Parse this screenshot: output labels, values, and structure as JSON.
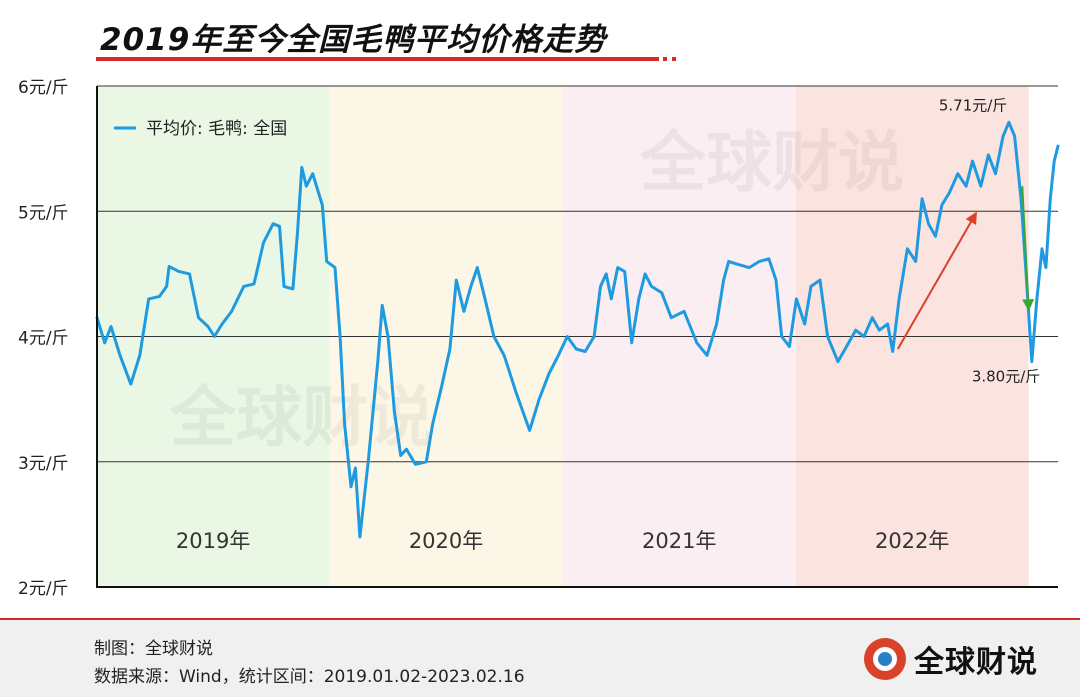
{
  "header": {
    "title": "2019年至今全国毛鸭平均价格走势"
  },
  "chart_data": {
    "type": "line",
    "title": "2019年至今全国毛鸭平均价格走势",
    "xlabel": "",
    "ylabel": "",
    "ylim": [
      2,
      6
    ],
    "y_ticks": [
      "2元/斤",
      "3元/斤",
      "4元/斤",
      "5元/斤",
      "6元/斤"
    ],
    "y_tick_values": [
      2,
      3,
      4,
      5,
      6
    ],
    "x_range": [
      "2019-01-02",
      "2023-02-16"
    ],
    "grid": "horizontal",
    "legend_position": "top-left",
    "legend": [
      "平均价: 毛鸭: 全国"
    ],
    "series": [
      {
        "name": "平均价: 毛鸭: 全国",
        "color": "#1e9be0",
        "points": [
          [
            "2019-01-02",
            4.15
          ],
          [
            "2019-01-14",
            3.95
          ],
          [
            "2019-01-24",
            4.08
          ],
          [
            "2019-02-07",
            3.85
          ],
          [
            "2019-02-24",
            3.62
          ],
          [
            "2019-03-10",
            3.85
          ],
          [
            "2019-03-24",
            4.3
          ],
          [
            "2019-04-10",
            4.32
          ],
          [
            "2019-04-21",
            4.4
          ],
          [
            "2019-04-25",
            4.56
          ],
          [
            "2019-05-10",
            4.52
          ],
          [
            "2019-05-27",
            4.5
          ],
          [
            "2019-06-10",
            4.15
          ],
          [
            "2019-06-25",
            4.08
          ],
          [
            "2019-07-05",
            4.0
          ],
          [
            "2019-07-17",
            4.1
          ],
          [
            "2019-08-01",
            4.2
          ],
          [
            "2019-08-20",
            4.4
          ],
          [
            "2019-09-05",
            4.42
          ],
          [
            "2019-09-20",
            4.75
          ],
          [
            "2019-10-05",
            4.9
          ],
          [
            "2019-10-15",
            4.88
          ],
          [
            "2019-10-22",
            4.4
          ],
          [
            "2019-11-05",
            4.38
          ],
          [
            "2019-11-12",
            4.82
          ],
          [
            "2019-11-19",
            5.35
          ],
          [
            "2019-11-26",
            5.2
          ],
          [
            "2019-12-06",
            5.3
          ],
          [
            "2019-12-21",
            5.05
          ],
          [
            "2019-12-28",
            4.6
          ],
          [
            "2020-01-10",
            4.55
          ],
          [
            "2020-01-18",
            4.0
          ],
          [
            "2020-01-25",
            3.3
          ],
          [
            "2020-02-04",
            2.8
          ],
          [
            "2020-02-11",
            2.95
          ],
          [
            "2020-02-18",
            2.4
          ],
          [
            "2020-03-02",
            3.0
          ],
          [
            "2020-03-17",
            3.8
          ],
          [
            "2020-03-24",
            4.25
          ],
          [
            "2020-04-02",
            4.0
          ],
          [
            "2020-04-12",
            3.4
          ],
          [
            "2020-04-22",
            3.05
          ],
          [
            "2020-05-01",
            3.1
          ],
          [
            "2020-05-15",
            2.98
          ],
          [
            "2020-06-01",
            3.0
          ],
          [
            "2020-06-11",
            3.3
          ],
          [
            "2020-06-25",
            3.6
          ],
          [
            "2020-07-08",
            3.9
          ],
          [
            "2020-07-18",
            4.45
          ],
          [
            "2020-07-30",
            4.2
          ],
          [
            "2020-08-10",
            4.4
          ],
          [
            "2020-08-20",
            4.55
          ],
          [
            "2020-09-01",
            4.3
          ],
          [
            "2020-09-15",
            4.0
          ],
          [
            "2020-10-01",
            3.85
          ],
          [
            "2020-10-20",
            3.55
          ],
          [
            "2020-11-10",
            3.25
          ],
          [
            "2020-11-25",
            3.5
          ],
          [
            "2020-12-10",
            3.7
          ],
          [
            "2020-12-25",
            3.85
          ],
          [
            "2021-01-08",
            4.0
          ],
          [
            "2021-01-22",
            3.9
          ],
          [
            "2021-02-05",
            3.88
          ],
          [
            "2021-02-19",
            4.0
          ],
          [
            "2021-03-01",
            4.4
          ],
          [
            "2021-03-10",
            4.5
          ],
          [
            "2021-03-18",
            4.3
          ],
          [
            "2021-03-28",
            4.55
          ],
          [
            "2021-04-08",
            4.52
          ],
          [
            "2021-04-19",
            3.95
          ],
          [
            "2021-04-30",
            4.3
          ],
          [
            "2021-05-10",
            4.5
          ],
          [
            "2021-05-20",
            4.4
          ],
          [
            "2021-06-05",
            4.35
          ],
          [
            "2021-06-20",
            4.15
          ],
          [
            "2021-07-10",
            4.2
          ],
          [
            "2021-07-30",
            3.95
          ],
          [
            "2021-08-15",
            3.85
          ],
          [
            "2021-08-30",
            4.1
          ],
          [
            "2021-09-10",
            4.45
          ],
          [
            "2021-09-18",
            4.6
          ],
          [
            "2021-09-30",
            4.58
          ],
          [
            "2021-10-20",
            4.55
          ],
          [
            "2021-11-05",
            4.6
          ],
          [
            "2021-11-20",
            4.62
          ],
          [
            "2021-12-01",
            4.45
          ],
          [
            "2021-12-10",
            4.0
          ],
          [
            "2021-12-22",
            3.92
          ],
          [
            "2022-01-02",
            4.3
          ],
          [
            "2022-01-15",
            4.1
          ],
          [
            "2022-01-25",
            4.4
          ],
          [
            "2022-02-08",
            4.45
          ],
          [
            "2022-02-20",
            4.0
          ],
          [
            "2022-03-08",
            3.8
          ],
          [
            "2022-03-25",
            3.95
          ],
          [
            "2022-04-05",
            4.05
          ],
          [
            "2022-04-18",
            4.0
          ],
          [
            "2022-05-01",
            4.15
          ],
          [
            "2022-05-12",
            4.05
          ],
          [
            "2022-05-25",
            4.1
          ],
          [
            "2022-06-02",
            3.88
          ],
          [
            "2022-06-12",
            4.3
          ],
          [
            "2022-06-25",
            4.7
          ],
          [
            "2022-07-08",
            4.6
          ],
          [
            "2022-07-18",
            5.1
          ],
          [
            "2022-07-28",
            4.9
          ],
          [
            "2022-08-08",
            4.8
          ],
          [
            "2022-08-18",
            5.05
          ],
          [
            "2022-08-30",
            5.15
          ],
          [
            "2022-09-12",
            5.3
          ],
          [
            "2022-09-25",
            5.2
          ],
          [
            "2022-10-05",
            5.4
          ],
          [
            "2022-10-18",
            5.2
          ],
          [
            "2022-10-30",
            5.45
          ],
          [
            "2022-11-10",
            5.3
          ],
          [
            "2022-11-22",
            5.6
          ],
          [
            "2022-12-01",
            5.71
          ],
          [
            "2022-12-10",
            5.6
          ],
          [
            "2022-12-20",
            5.1
          ],
          [
            "2022-12-28",
            4.5
          ],
          [
            "2023-01-06",
            3.8
          ],
          [
            "2023-01-14",
            4.3
          ],
          [
            "2023-01-22",
            4.7
          ],
          [
            "2023-01-28",
            4.55
          ],
          [
            "2023-02-04",
            5.1
          ],
          [
            "2023-02-10",
            5.4
          ],
          [
            "2023-02-16",
            5.52
          ]
        ]
      }
    ],
    "year_bands": [
      {
        "label": "2019年",
        "start": "2019-01-02",
        "end": "2020-01-01",
        "color": "#eaf7e5"
      },
      {
        "label": "2020年",
        "start": "2020-01-01",
        "end": "2021-01-01",
        "color": "#fcf6e6"
      },
      {
        "label": "2021年",
        "start": "2021-01-01",
        "end": "2022-01-01",
        "color": "#fbeef3"
      },
      {
        "label": "2022年",
        "start": "2022-01-01",
        "end": "2023-01-01",
        "color": "#fbe3e0"
      }
    ],
    "annotations": [
      {
        "text": "5.71元/斤",
        "x": "2022-12-01",
        "y": 5.71
      },
      {
        "text": "3.80元/斤",
        "x": "2023-01-06",
        "y": 3.8
      }
    ],
    "arrows": [
      {
        "from": [
          "2022-06-10",
          3.9
        ],
        "to": [
          "2022-10-10",
          4.98
        ],
        "color": "#d9412a"
      },
      {
        "from": [
          "2022-12-22",
          5.2
        ],
        "to": [
          "2023-01-01",
          4.22
        ],
        "color": "#3aa830"
      }
    ],
    "watermark": "全球财说"
  },
  "footer": {
    "maker": "制图：全球财说",
    "source": "数据来源：Wind，统计区间：2019.01.02-2023.02.16",
    "brand": "全球财说"
  }
}
